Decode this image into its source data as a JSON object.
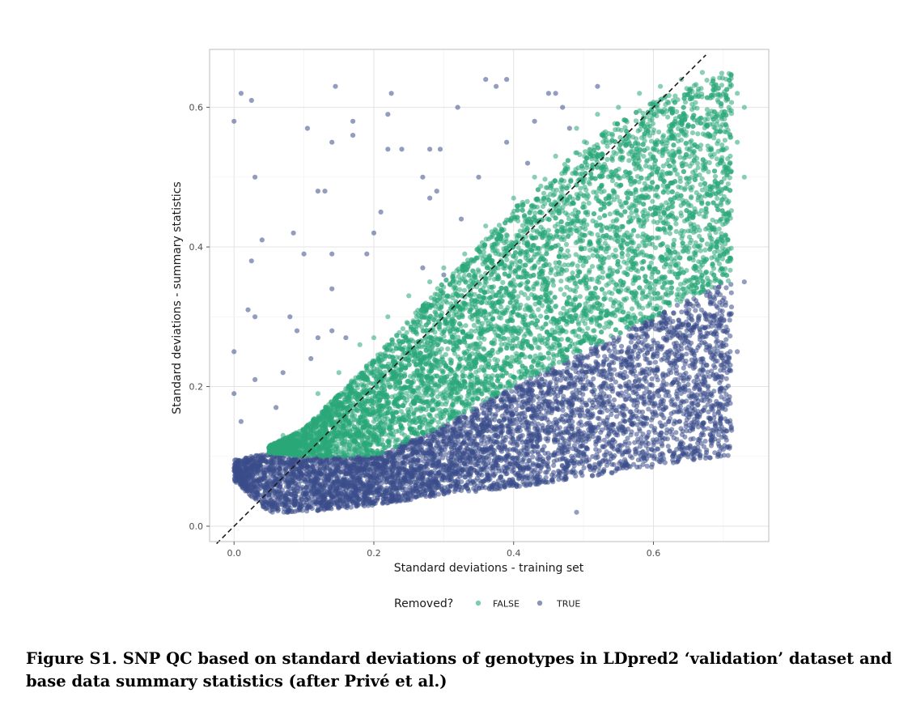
{
  "caption": "Figure S1. SNP QC based on standard deviations of genotypes in LDpred2 ‘validation’ dataset and base data summary statistics (after Privé et al.)",
  "chart_data": {
    "type": "scatter",
    "xlabel": "Standard deviations - training set",
    "ylabel": "Standard deviations - summary statistics",
    "xlim": [
      -0.035,
      0.765
    ],
    "ylim": [
      -0.022,
      0.683
    ],
    "xticks": [
      0.0,
      0.2,
      0.4,
      0.6
    ],
    "yticks": [
      0.0,
      0.2,
      0.4,
      0.6
    ],
    "tick_labels_x": [
      "0.0",
      "0.2",
      "0.4",
      "0.6"
    ],
    "tick_labels_y": [
      "0.0",
      "0.2",
      "0.4",
      "0.6"
    ],
    "grid": true,
    "reference_line": {
      "style": "dashed",
      "slope": 1,
      "intercept": 0
    },
    "legend": {
      "title": "Removed?",
      "position": "bottom",
      "entries": [
        {
          "label": "FALSE",
          "color": "#2aa879"
        },
        {
          "label": "TRUE",
          "color": "#3a4d8a"
        }
      ]
    },
    "series": [
      {
        "name": "FALSE",
        "color": "#2aa879",
        "density": "dense band",
        "region_lower": [
          [
            0.05,
            0.105
          ],
          [
            0.1,
            0.1
          ],
          [
            0.2,
            0.1
          ],
          [
            0.3,
            0.145
          ],
          [
            0.4,
            0.2
          ],
          [
            0.5,
            0.25
          ],
          [
            0.6,
            0.3
          ],
          [
            0.7,
            0.35
          ]
        ],
        "region_upper": [
          [
            0.05,
            0.115
          ],
          [
            0.1,
            0.14
          ],
          [
            0.2,
            0.24
          ],
          [
            0.3,
            0.35
          ],
          [
            0.4,
            0.455
          ],
          [
            0.5,
            0.55
          ],
          [
            0.6,
            0.61
          ],
          [
            0.7,
            0.65
          ]
        ],
        "points": [
          [
            0.07,
            0.13
          ],
          [
            0.12,
            0.19
          ],
          [
            0.15,
            0.22
          ],
          [
            0.18,
            0.26
          ],
          [
            0.2,
            0.27
          ],
          [
            0.22,
            0.3
          ],
          [
            0.25,
            0.33
          ],
          [
            0.28,
            0.35
          ],
          [
            0.3,
            0.37
          ],
          [
            0.33,
            0.39
          ],
          [
            0.36,
            0.43
          ],
          [
            0.4,
            0.47
          ],
          [
            0.43,
            0.5
          ],
          [
            0.46,
            0.53
          ],
          [
            0.49,
            0.57
          ],
          [
            0.52,
            0.59
          ],
          [
            0.55,
            0.6
          ],
          [
            0.58,
            0.62
          ],
          [
            0.61,
            0.63
          ],
          [
            0.64,
            0.64
          ],
          [
            0.67,
            0.65
          ],
          [
            0.72,
            0.62
          ],
          [
            0.73,
            0.6
          ],
          [
            0.72,
            0.55
          ],
          [
            0.73,
            0.5
          ]
        ]
      },
      {
        "name": "TRUE",
        "color": "#3a4d8a",
        "density": "dense band",
        "region_lower": [
          [
            0.0,
            0.065
          ],
          [
            0.05,
            0.02
          ],
          [
            0.1,
            0.02
          ],
          [
            0.2,
            0.03
          ],
          [
            0.3,
            0.045
          ],
          [
            0.4,
            0.055
          ],
          [
            0.5,
            0.07
          ],
          [
            0.6,
            0.085
          ],
          [
            0.7,
            0.1
          ]
        ],
        "region_upper": [
          [
            0.0,
            0.095
          ],
          [
            0.05,
            0.105
          ],
          [
            0.1,
            0.1
          ],
          [
            0.2,
            0.1
          ],
          [
            0.3,
            0.145
          ],
          [
            0.4,
            0.2
          ],
          [
            0.5,
            0.25
          ],
          [
            0.6,
            0.3
          ],
          [
            0.7,
            0.35
          ]
        ],
        "points": [
          [
            0.0,
            0.58
          ],
          [
            0.01,
            0.62
          ],
          [
            0.025,
            0.61
          ],
          [
            0.03,
            0.5
          ],
          [
            0.04,
            0.41
          ],
          [
            0.025,
            0.38
          ],
          [
            0.02,
            0.31
          ],
          [
            0.03,
            0.3
          ],
          [
            0.0,
            0.25
          ],
          [
            0.0,
            0.19
          ],
          [
            0.01,
            0.15
          ],
          [
            0.03,
            0.21
          ],
          [
            0.06,
            0.17
          ],
          [
            0.07,
            0.22
          ],
          [
            0.08,
            0.3
          ],
          [
            0.085,
            0.42
          ],
          [
            0.1,
            0.39
          ],
          [
            0.105,
            0.57
          ],
          [
            0.12,
            0.48
          ],
          [
            0.13,
            0.48
          ],
          [
            0.14,
            0.55
          ],
          [
            0.145,
            0.63
          ],
          [
            0.14,
            0.39
          ],
          [
            0.14,
            0.34
          ],
          [
            0.14,
            0.28
          ],
          [
            0.16,
            0.27
          ],
          [
            0.17,
            0.56
          ],
          [
            0.17,
            0.58
          ],
          [
            0.2,
            0.42
          ],
          [
            0.21,
            0.45
          ],
          [
            0.22,
            0.54
          ],
          [
            0.22,
            0.59
          ],
          [
            0.225,
            0.62
          ],
          [
            0.24,
            0.54
          ],
          [
            0.27,
            0.37
          ],
          [
            0.27,
            0.5
          ],
          [
            0.28,
            0.47
          ],
          [
            0.28,
            0.54
          ],
          [
            0.29,
            0.48
          ],
          [
            0.295,
            0.54
          ],
          [
            0.32,
            0.6
          ],
          [
            0.325,
            0.44
          ],
          [
            0.35,
            0.5
          ],
          [
            0.36,
            0.64
          ],
          [
            0.375,
            0.63
          ],
          [
            0.39,
            0.64
          ],
          [
            0.39,
            0.55
          ],
          [
            0.42,
            0.52
          ],
          [
            0.43,
            0.58
          ],
          [
            0.45,
            0.62
          ],
          [
            0.46,
            0.62
          ],
          [
            0.47,
            0.6
          ],
          [
            0.48,
            0.57
          ],
          [
            0.49,
            0.02
          ],
          [
            0.52,
            0.63
          ],
          [
            0.12,
            0.27
          ],
          [
            0.09,
            0.28
          ],
          [
            0.11,
            0.24
          ],
          [
            0.19,
            0.39
          ],
          [
            0.3,
            0.36
          ],
          [
            0.7,
            0.11
          ],
          [
            0.73,
            0.35
          ],
          [
            0.72,
            0.25
          ]
        ]
      }
    ]
  }
}
